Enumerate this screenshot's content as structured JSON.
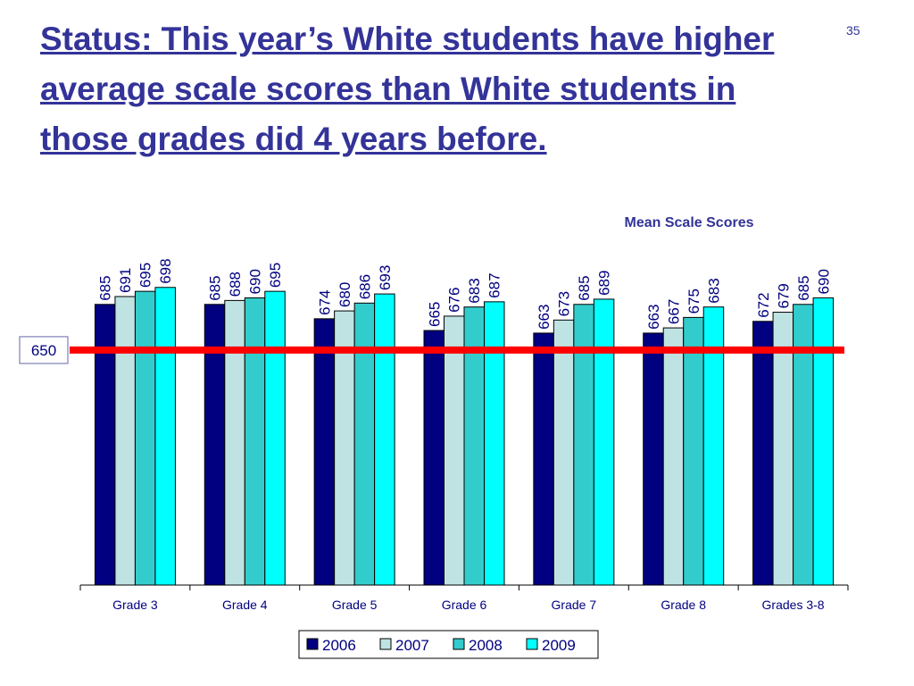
{
  "slide_title": "Status: This year’s White students have higher average scale scores than White students in those grades did 4 years before.",
  "page_number": "35",
  "chart_data": {
    "type": "bar",
    "title": "Mean Scale Scores",
    "categories": [
      "Grade 3",
      "Grade 4",
      "Grade 5",
      "Grade 6",
      "Grade 7",
      "Grade 8",
      "Grades 3-8"
    ],
    "series": [
      {
        "name": "2006",
        "color": "#000080",
        "values": [
          685,
          685,
          674,
          665,
          663,
          663,
          672
        ]
      },
      {
        "name": "2007",
        "color": "#bfe3e3",
        "values": [
          691,
          688,
          680,
          676,
          673,
          667,
          679
        ]
      },
      {
        "name": "2008",
        "color": "#33cccc",
        "values": [
          695,
          690,
          686,
          683,
          685,
          675,
          685
        ]
      },
      {
        "name": "2009",
        "color": "#00ffff",
        "values": [
          698,
          695,
          693,
          687,
          689,
          683,
          690
        ]
      }
    ],
    "ylim": [
      470,
      730
    ],
    "reference_line": {
      "value": 650,
      "color": "#ff0000"
    },
    "legend": "bottom"
  }
}
